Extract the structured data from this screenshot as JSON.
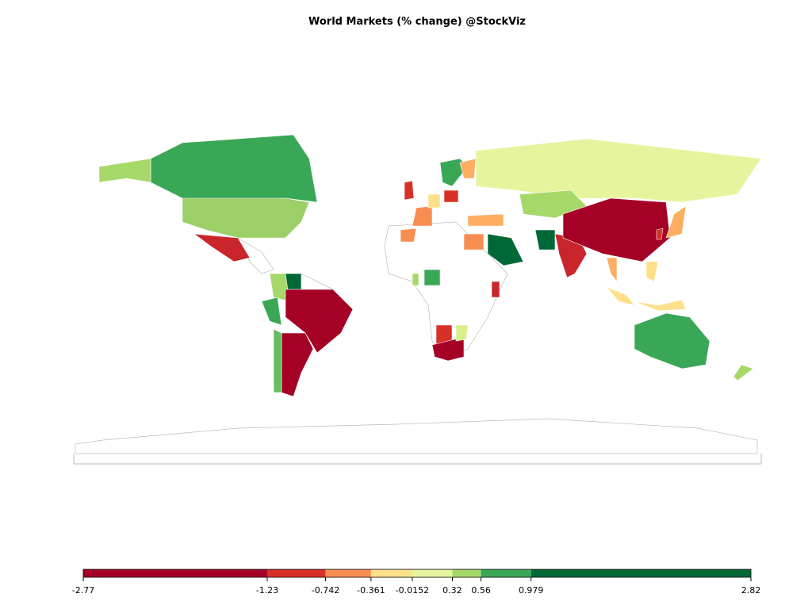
{
  "chart_data": {
    "type": "choropleth",
    "title": "World Markets (% change) @StockViz",
    "legend": {
      "ticks": [
        -2.77,
        -1.23,
        -0.742,
        -0.361,
        -0.0152,
        0.32,
        0.56,
        0.979,
        2.82
      ],
      "colors": [
        "#a50026",
        "#d73027",
        "#f88d52",
        "#fee08b",
        "#e6f59d",
        "#a6d96a",
        "#3aa757",
        "#006837"
      ]
    }
  }
}
